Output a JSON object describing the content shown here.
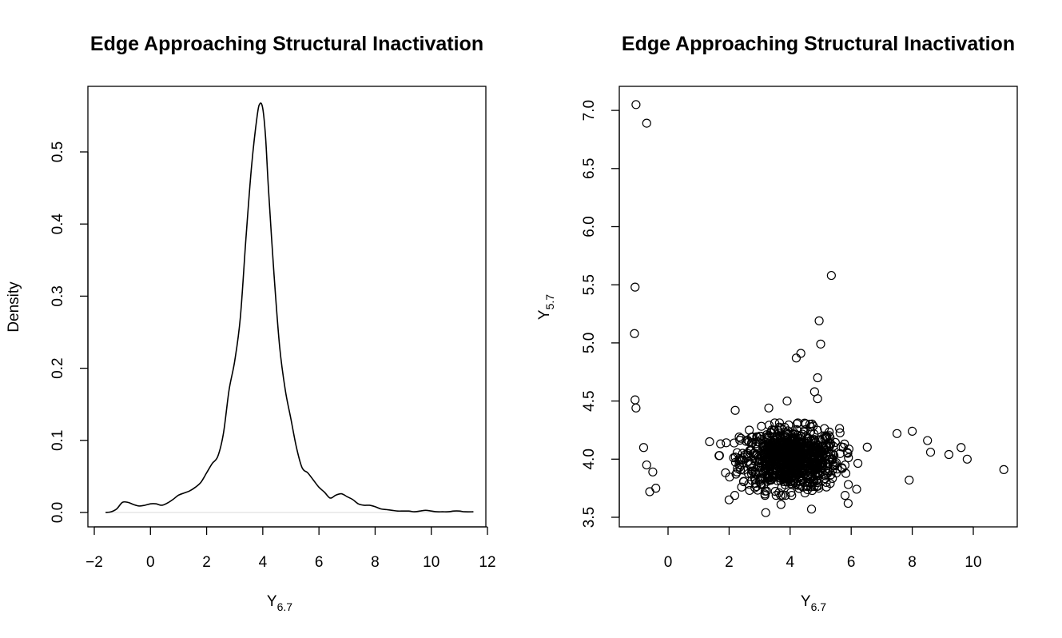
{
  "chart_data": [
    {
      "type": "line",
      "title": "Edge Approaching Structural Inactivation",
      "xlabel": "Y",
      "xlabel_sub": "6.7",
      "ylabel": "Density",
      "xlim": [
        -2,
        12
      ],
      "ylim": [
        0,
        0.57
      ],
      "x_ticks": [
        -2,
        0,
        2,
        4,
        6,
        8,
        10,
        12
      ],
      "x_tick_labels": [
        "−2",
        "0",
        "2",
        "4",
        "6",
        "8",
        "10",
        "12"
      ],
      "y_ticks": [
        0.0,
        0.1,
        0.2,
        0.3,
        0.4,
        0.5
      ],
      "y_tick_labels": [
        "0.0",
        "0.1",
        "0.2",
        "0.3",
        "0.4",
        "0.5"
      ],
      "grid": false,
      "baseline": 0,
      "series": [
        {
          "x": [
            -1.6,
            -1.4,
            -1.2,
            -1.0,
            -0.8,
            -0.6,
            -0.4,
            -0.2,
            0.0,
            0.2,
            0.4,
            0.6,
            0.8,
            1.0,
            1.2,
            1.4,
            1.6,
            1.8,
            2.0,
            2.2,
            2.4,
            2.6,
            2.8,
            3.0,
            3.2,
            3.4,
            3.6,
            3.8,
            3.9,
            4.0,
            4.1,
            4.2,
            4.4,
            4.6,
            4.8,
            5.0,
            5.2,
            5.4,
            5.6,
            5.8,
            6.0,
            6.2,
            6.4,
            6.6,
            6.8,
            7.0,
            7.2,
            7.4,
            7.6,
            7.8,
            8.0,
            8.2,
            8.4,
            8.6,
            8.8,
            9.0,
            9.2,
            9.4,
            9.6,
            9.8,
            10.0,
            10.2,
            10.4,
            10.6,
            10.8,
            11.0,
            11.2,
            11.5
          ],
          "y": [
            0.0,
            0.001,
            0.005,
            0.014,
            0.014,
            0.011,
            0.009,
            0.01,
            0.012,
            0.012,
            0.01,
            0.013,
            0.018,
            0.024,
            0.027,
            0.03,
            0.035,
            0.042,
            0.055,
            0.068,
            0.078,
            0.11,
            0.17,
            0.21,
            0.27,
            0.38,
            0.48,
            0.55,
            0.567,
            0.56,
            0.52,
            0.45,
            0.33,
            0.23,
            0.17,
            0.13,
            0.09,
            0.062,
            0.055,
            0.045,
            0.035,
            0.028,
            0.02,
            0.024,
            0.026,
            0.022,
            0.018,
            0.012,
            0.01,
            0.01,
            0.008,
            0.005,
            0.004,
            0.003,
            0.002,
            0.002,
            0.002,
            0.001,
            0.002,
            0.003,
            0.002,
            0.001,
            0.001,
            0.001,
            0.002,
            0.002,
            0.001,
            0.001
          ]
        }
      ]
    },
    {
      "type": "scatter",
      "title": "Edge Approaching Structural Inactivation",
      "xlabel": "Y",
      "xlabel_sub": "6.7",
      "ylabel": "Y",
      "ylabel_sub": "5.7",
      "xlim": [
        -1.5,
        11.5
      ],
      "ylim": [
        3.45,
        7.15
      ],
      "x_ticks": [
        0,
        2,
        4,
        6,
        8,
        10
      ],
      "x_tick_labels": [
        "0",
        "2",
        "4",
        "6",
        "8",
        "10"
      ],
      "y_ticks": [
        3.5,
        4.0,
        4.5,
        5.0,
        5.5,
        6.0,
        6.5,
        7.0
      ],
      "y_tick_labels": [
        "3.5",
        "4.0",
        "4.5",
        "5.0",
        "5.5",
        "6.0",
        "6.5",
        "7.0"
      ],
      "grid": false,
      "outliers": {
        "x": [
          -1.05,
          -0.7,
          -1.08,
          -1.1,
          -1.08,
          -1.05,
          5.35,
          4.95,
          5.0,
          4.35,
          4.2,
          4.9,
          4.8,
          4.9,
          3.9,
          3.3,
          2.2,
          11.0,
          9.8,
          9.6,
          9.2,
          8.5,
          8.6,
          8.0,
          7.9,
          7.5,
          -0.8,
          -0.7,
          -0.5,
          -0.6,
          -0.4,
          2.0,
          3.2,
          4.7,
          5.9,
          3.7
        ],
        "y": [
          7.05,
          6.89,
          5.48,
          5.08,
          4.51,
          4.44,
          5.58,
          5.19,
          4.99,
          4.91,
          4.87,
          4.7,
          4.58,
          4.52,
          4.5,
          4.44,
          4.42,
          3.91,
          4.0,
          4.1,
          4.04,
          4.16,
          4.06,
          4.24,
          3.82,
          4.22,
          4.1,
          3.95,
          3.89,
          3.72,
          3.75,
          3.65,
          3.54,
          3.57,
          3.62,
          3.61
        ]
      },
      "cluster": {
        "n": 900,
        "center_x": 4.0,
        "center_y": 4.0,
        "spread_x": 0.8,
        "spread_y": 0.13
      }
    }
  ]
}
